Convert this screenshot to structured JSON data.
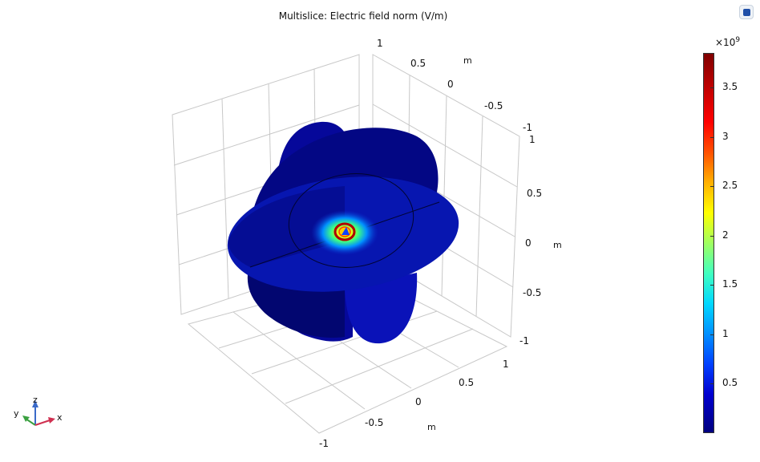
{
  "title": "Multislice: Electric field norm (V/m)",
  "chart_data": {
    "type": "heatmap",
    "title": "Multislice: Electric field norm (V/m)",
    "x_axis": {
      "unit": "m",
      "range": [
        -1,
        1
      ],
      "ticks": [
        "1",
        "0.5",
        "0",
        "-0.5",
        "-1"
      ]
    },
    "y_axis": {
      "unit": "m",
      "range": [
        -1,
        1
      ],
      "ticks": [
        "0.5",
        "0",
        "-0.5",
        "-1"
      ]
    },
    "z_axis": {
      "unit": "m",
      "range": [
        -1,
        1
      ],
      "ticks": [
        "1",
        "0.5",
        "0",
        "-0.5",
        "-1"
      ]
    },
    "top_front_tick": "1",
    "colorbar": {
      "multiplier": "×10",
      "exponent": "9",
      "range": [
        0,
        3.85
      ],
      "ticks": [
        {
          "value": 0.5,
          "label": "0.5"
        },
        {
          "value": 1,
          "label": "1"
        },
        {
          "value": 1.5,
          "label": "1.5"
        },
        {
          "value": 2,
          "label": "2"
        },
        {
          "value": 2.5,
          "label": "2.5"
        },
        {
          "value": 3,
          "label": "3"
        },
        {
          "value": 3.5,
          "label": "3.5"
        }
      ],
      "colormap": "rainbow"
    },
    "field_peak": "center"
  },
  "triad": {
    "z": "z",
    "y": "y",
    "x": "x"
  }
}
